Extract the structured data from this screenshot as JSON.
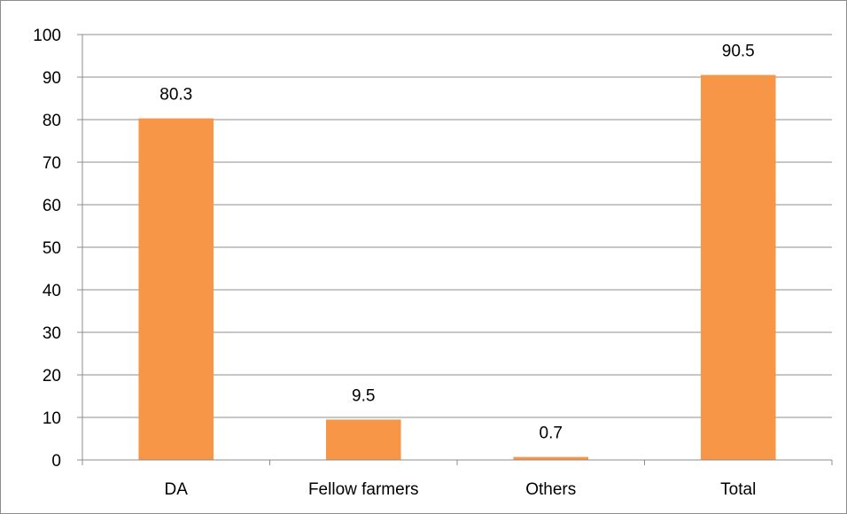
{
  "chart_data": {
    "type": "bar",
    "categories": [
      "DA",
      "Fellow farmers",
      "Others",
      "Total"
    ],
    "values": [
      80.3,
      9.5,
      0.7,
      90.5
    ],
    "data_labels": [
      "80.3",
      "9.5",
      "0.7",
      "90.5"
    ],
    "title": "",
    "xlabel": "",
    "ylabel": "",
    "ylim": [
      0,
      100
    ],
    "yticks": [
      0,
      10,
      20,
      30,
      40,
      50,
      60,
      70,
      80,
      90,
      100
    ],
    "grid": true,
    "legend": "none",
    "bar_color": "#f79646",
    "grid_color": "#8c8c8c"
  }
}
